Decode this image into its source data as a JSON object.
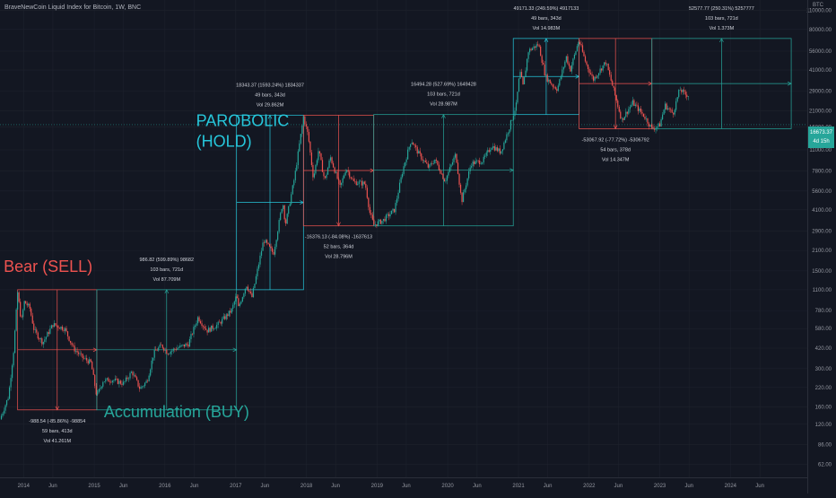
{
  "chart_title": "BraveNewCoin Liquid Index for Bitcoin, 1W, BNC",
  "unit": "BTC",
  "last_price": "16673.37",
  "last_price_countdown": "4d 15h",
  "colors": {
    "background": "#131722",
    "up": "#26a69a",
    "down": "#ef5350",
    "cycle_bear": "#ef5350",
    "cycle_parabolic": "#26c6da",
    "cycle_accumulation": "#4caf50",
    "text": "#d1d4dc",
    "axis_text": "#9598a1",
    "grid": "#1e222d"
  },
  "chart_data": {
    "type": "line",
    "style": "candlestick",
    "y_scale": "log",
    "ylim": [
      50,
      130000
    ],
    "x_range": [
      "2013-09-01",
      "2025-02-01"
    ],
    "grid": true,
    "y_ticks": [
      62,
      86,
      120,
      160,
      220,
      300,
      420,
      580,
      780,
      1100,
      1500,
      2100,
      2900,
      4100,
      5600,
      7800,
      11000,
      16000,
      21000,
      29000,
      41000,
      56000,
      80000,
      110000
    ],
    "y_tick_labels": [
      "62.00",
      "86.00",
      "120.00",
      "160.00",
      "220.00",
      "300.00",
      "420.00",
      "580.00",
      "780.00",
      "1100.00",
      "1500.00",
      "2100.00",
      "2900.00",
      "4100.00",
      "5600.00",
      "7800.00",
      "11000.00",
      "16000.00",
      "21000.00",
      "29000.00",
      "41000.00",
      "56000.00",
      "80000.00",
      "110000.00"
    ],
    "x_ticks": [
      {
        "date": "2014-01-01",
        "label": "2014"
      },
      {
        "date": "2014-06-01",
        "label": "Jun"
      },
      {
        "date": "2015-01-01",
        "label": "2015"
      },
      {
        "date": "2015-06-01",
        "label": "Jun"
      },
      {
        "date": "2016-01-01",
        "label": "2016"
      },
      {
        "date": "2016-06-01",
        "label": "Jun"
      },
      {
        "date": "2017-01-01",
        "label": "2017"
      },
      {
        "date": "2017-06-01",
        "label": "Jun"
      },
      {
        "date": "2018-01-01",
        "label": "2018"
      },
      {
        "date": "2018-06-01",
        "label": "Jun"
      },
      {
        "date": "2019-01-01",
        "label": "2019"
      },
      {
        "date": "2019-06-01",
        "label": "Jun"
      },
      {
        "date": "2020-01-01",
        "label": "2020"
      },
      {
        "date": "2020-06-01",
        "label": "Jun"
      },
      {
        "date": "2021-01-01",
        "label": "2021"
      },
      {
        "date": "2021-06-01",
        "label": "Jun"
      },
      {
        "date": "2022-01-01",
        "label": "2022"
      },
      {
        "date": "2022-06-01",
        "label": "Jun"
      },
      {
        "date": "2023-01-01",
        "label": "2023"
      },
      {
        "date": "2023-06-01",
        "label": "Jun"
      },
      {
        "date": "2024-01-01",
        "label": "2024"
      },
      {
        "date": "2024-06-01",
        "label": "Jun"
      }
    ],
    "price_path": [
      [
        "2013-09-01",
        130
      ],
      [
        "2013-10-15",
        190
      ],
      [
        "2013-11-10",
        400
      ],
      [
        "2013-12-01",
        1050
      ],
      [
        "2013-12-20",
        650
      ],
      [
        "2014-01-05",
        900
      ],
      [
        "2014-02-01",
        820
      ],
      [
        "2014-02-25",
        560
      ],
      [
        "2014-04-10",
        460
      ],
      [
        "2014-06-01",
        620
      ],
      [
        "2014-08-01",
        580
      ],
      [
        "2014-09-15",
        420
      ],
      [
        "2014-11-01",
        360
      ],
      [
        "2014-12-15",
        330
      ],
      [
        "2015-01-14",
        190
      ],
      [
        "2015-02-15",
        245
      ],
      [
        "2015-04-01",
        250
      ],
      [
        "2015-06-01",
        235
      ],
      [
        "2015-07-15",
        285
      ],
      [
        "2015-08-25",
        215
      ],
      [
        "2015-10-01",
        245
      ],
      [
        "2015-11-05",
        390
      ],
      [
        "2015-12-15",
        440
      ],
      [
        "2016-01-15",
        390
      ],
      [
        "2016-03-01",
        420
      ],
      [
        "2016-05-01",
        450
      ],
      [
        "2016-06-20",
        700
      ],
      [
        "2016-08-05",
        560
      ],
      [
        "2016-10-01",
        620
      ],
      [
        "2016-12-10",
        780
      ],
      [
        "2017-01-05",
        1000
      ],
      [
        "2017-01-15",
        820
      ],
      [
        "2017-02-25",
        1200
      ],
      [
        "2017-03-25",
        960
      ],
      [
        "2017-05-25",
        2500
      ],
      [
        "2017-07-15",
        2000
      ],
      [
        "2017-09-01",
        4700
      ],
      [
        "2017-09-15",
        3200
      ],
      [
        "2017-11-01",
        7000
      ],
      [
        "2017-12-17",
        19000
      ],
      [
        "2018-01-10",
        14000
      ],
      [
        "2018-02-06",
        6900
      ],
      [
        "2018-03-05",
        11000
      ],
      [
        "2018-04-06",
        6600
      ],
      [
        "2018-05-05",
        9800
      ],
      [
        "2018-06-25",
        5900
      ],
      [
        "2018-07-25",
        8200
      ],
      [
        "2018-09-01",
        6500
      ],
      [
        "2018-11-01",
        6300
      ],
      [
        "2018-11-25",
        3900
      ],
      [
        "2018-12-15",
        3200
      ],
      [
        "2019-02-01",
        3450
      ],
      [
        "2019-04-01",
        4100
      ],
      [
        "2019-05-15",
        8000
      ],
      [
        "2019-06-26",
        13000
      ],
      [
        "2019-08-01",
        10500
      ],
      [
        "2019-09-25",
        8200
      ],
      [
        "2019-10-27",
        9400
      ],
      [
        "2019-12-18",
        6600
      ],
      [
        "2020-02-12",
        10300
      ],
      [
        "2020-03-13",
        4700
      ],
      [
        "2020-05-01",
        8800
      ],
      [
        "2020-07-01",
        9200
      ],
      [
        "2020-08-15",
        11800
      ],
      [
        "2020-10-01",
        10600
      ],
      [
        "2020-11-15",
        16000
      ],
      [
        "2020-12-20",
        23000
      ],
      [
        "2021-01-08",
        40000
      ],
      [
        "2021-01-25",
        31000
      ],
      [
        "2021-02-20",
        56000
      ],
      [
        "2021-04-14",
        63000
      ],
      [
        "2021-05-20",
        37000
      ],
      [
        "2021-06-25",
        32000
      ],
      [
        "2021-07-20",
        30000
      ],
      [
        "2021-09-05",
        51000
      ],
      [
        "2021-09-25",
        41000
      ],
      [
        "2021-11-09",
        67000
      ],
      [
        "2021-12-15",
        46000
      ],
      [
        "2022-01-22",
        35000
      ],
      [
        "2022-03-28",
        47000
      ],
      [
        "2022-05-12",
        28000
      ],
      [
        "2022-06-18",
        18000
      ],
      [
        "2022-08-14",
        24000
      ],
      [
        "2022-10-15",
        19000
      ],
      [
        "2022-11-21",
        15600
      ],
      [
        "2022-12-31",
        16500
      ],
      [
        "2023-01-28",
        23000
      ],
      [
        "2023-03-10",
        20000
      ],
      [
        "2023-04-14",
        30000
      ],
      [
        "2023-05-10",
        27500
      ],
      [
        "2023-06-01",
        27000
      ]
    ],
    "cycles": [
      {
        "role": "bear",
        "start": "2013-12-01",
        "end": "2015-01-14",
        "p_start": 1100,
        "p_end": 152,
        "color": "down",
        "label": [
          "-988.54 (-85.86%) -98854",
          "59 bars, 413d",
          "Vol 41.261M"
        ],
        "label_pos": "below"
      },
      {
        "role": "accumulation",
        "start": "2015-01-14",
        "end": "2017-01-05",
        "p_start": 152,
        "p_end": 1100,
        "color": "up",
        "label": [
          "986.82 (599.89%) 98682",
          "103 bars, 721d",
          "Vol 87.709M"
        ],
        "label_pos": "above"
      },
      {
        "role": "parabolic",
        "start": "2017-01-05",
        "end": "2017-12-17",
        "p_start": 1100,
        "p_end": 19500,
        "color": "parabolic",
        "label": [
          "18343.37 (1593.24%) 1834337",
          "49 bars, 343d",
          "Vol 29.862M"
        ],
        "label_pos": "above"
      },
      {
        "role": "bear",
        "start": "2017-12-17",
        "end": "2018-12-15",
        "p_start": 19500,
        "p_end": 3150,
        "color": "down",
        "label": [
          "-16376.13 (-84.08%) -1637613",
          "52 bars, 364d",
          "Vol 28.796M"
        ],
        "label_pos": "below"
      },
      {
        "role": "accumulation",
        "start": "2018-12-15",
        "end": "2020-12-05",
        "p_start": 3150,
        "p_end": 19700,
        "color": "up",
        "label": [
          "16494.28 (527.69%) 1649428",
          "103 bars, 721d",
          "Vol 28.987M"
        ],
        "label_pos": "above"
      },
      {
        "role": "parabolic",
        "start": "2020-12-05",
        "end": "2021-11-10",
        "p_start": 19700,
        "p_end": 69000,
        "color": "parabolic",
        "label": [
          "49171.33 (249.59%) 4917133",
          "49 bars, 343d",
          "Vol 14.983M"
        ],
        "label_pos": "above"
      },
      {
        "role": "bear",
        "start": "2021-11-10",
        "end": "2022-11-21",
        "p_start": 69000,
        "p_end": 15600,
        "color": "down",
        "label": [
          "-53067.92 (-77.72%) -5306792",
          "54 bars, 378d",
          "Vol 14.347M"
        ],
        "label_pos": "below"
      },
      {
        "role": "accumulation",
        "start": "2022-11-21",
        "end": "2024-11-10",
        "p_start": 15600,
        "p_end": 69000,
        "color": "up",
        "label": [
          "52577.77 (250.31%) 5257777",
          "103 bars, 721d",
          "Vol 1.373M"
        ],
        "label_pos": "above"
      }
    ],
    "annotations": [
      {
        "text": "Bear (SELL)",
        "color": "down",
        "date": "2013-09-20",
        "price": 1480
      },
      {
        "text": "PAROBOLIC",
        "color": "parabolic",
        "date": "2016-06-10",
        "price": 16300
      },
      {
        "text": "(HOLD)",
        "color": "parabolic",
        "date": "2016-06-10",
        "price": 11600
      },
      {
        "text": "Accumulation (BUY)",
        "color": "up",
        "date": "2015-02-20",
        "price": 135
      }
    ]
  }
}
